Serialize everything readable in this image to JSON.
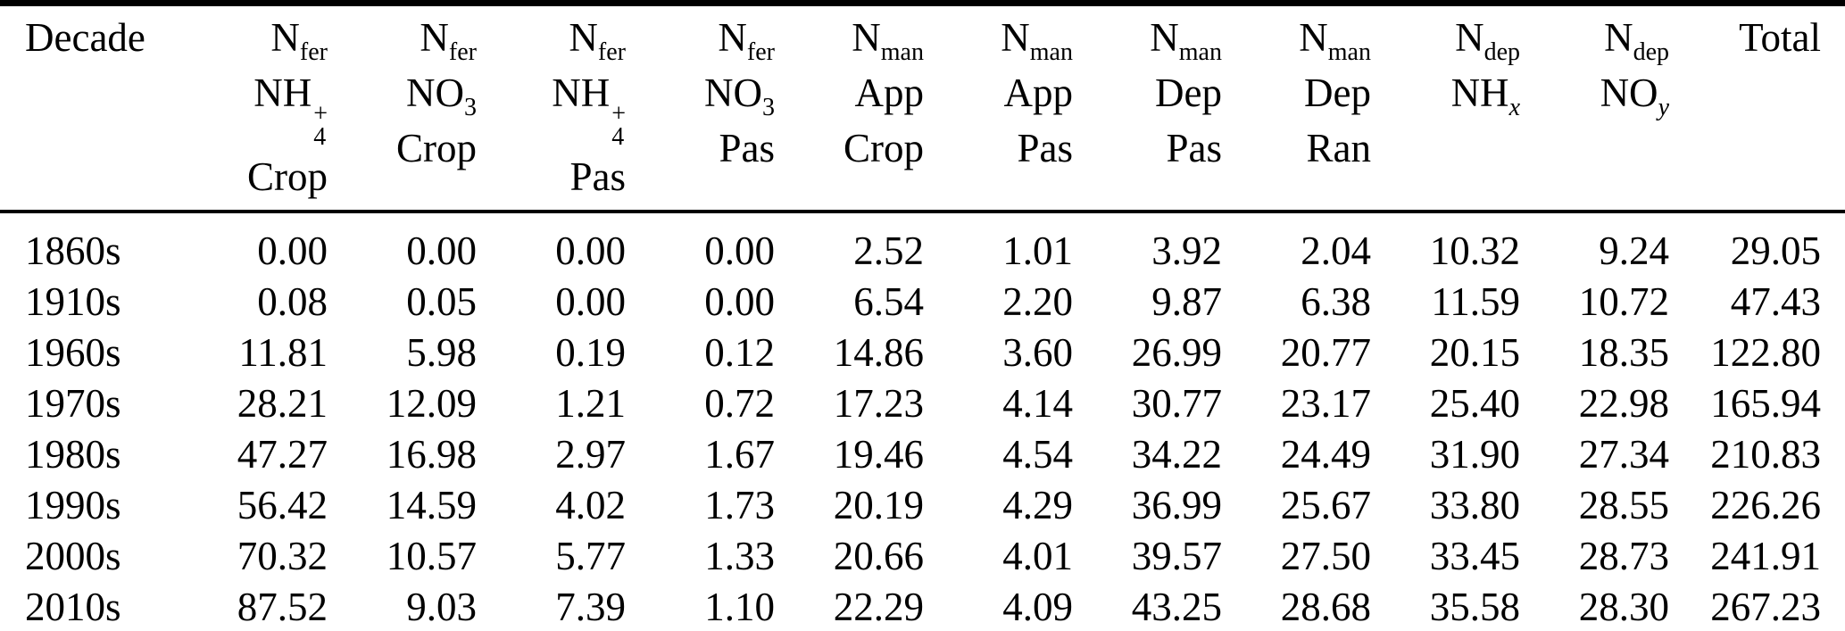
{
  "page": {
    "background_color": "#ffffff",
    "text_color": "#000000",
    "rule_color": "#000000"
  },
  "table": {
    "name": "nitrogen-inputs-by-decade",
    "columns": [
      {
        "id": "decade",
        "align": "left",
        "lines": [
          [
            {
              "t": "Decade"
            }
          ]
        ]
      },
      {
        "id": "nfer-nh4-crop",
        "align": "right",
        "lines": [
          [
            {
              "t": "N"
            },
            {
              "sub": "fer"
            }
          ],
          [
            {
              "t": "NH"
            },
            {
              "stack": {
                "sup": "+",
                "sub": "4"
              }
            }
          ],
          [
            {
              "t": "Crop"
            }
          ]
        ]
      },
      {
        "id": "nfer-no3-crop",
        "align": "right",
        "lines": [
          [
            {
              "t": "N"
            },
            {
              "sub": "fer"
            }
          ],
          [
            {
              "t": "NO"
            },
            {
              "sub": "3"
            }
          ],
          [
            {
              "t": "Crop"
            }
          ]
        ]
      },
      {
        "id": "nfer-nh4-pas",
        "align": "right",
        "lines": [
          [
            {
              "t": "N"
            },
            {
              "sub": "fer"
            }
          ],
          [
            {
              "t": "NH"
            },
            {
              "stack": {
                "sup": "+",
                "sub": "4"
              }
            }
          ],
          [
            {
              "t": "Pas"
            }
          ]
        ]
      },
      {
        "id": "nfer-no3-pas",
        "align": "right",
        "lines": [
          [
            {
              "t": "N"
            },
            {
              "sub": "fer"
            }
          ],
          [
            {
              "t": "NO"
            },
            {
              "sub": "3"
            }
          ],
          [
            {
              "t": "Pas"
            }
          ]
        ]
      },
      {
        "id": "nman-app-crop",
        "align": "right",
        "lines": [
          [
            {
              "t": "N"
            },
            {
              "sub": "man"
            }
          ],
          [
            {
              "t": "App"
            }
          ],
          [
            {
              "t": "Crop"
            }
          ]
        ]
      },
      {
        "id": "nman-app-pas",
        "align": "right",
        "lines": [
          [
            {
              "t": "N"
            },
            {
              "sub": "man"
            }
          ],
          [
            {
              "t": "App"
            }
          ],
          [
            {
              "t": "Pas"
            }
          ]
        ]
      },
      {
        "id": "nman-dep-pas",
        "align": "right",
        "lines": [
          [
            {
              "t": "N"
            },
            {
              "sub": "man"
            }
          ],
          [
            {
              "t": "Dep"
            }
          ],
          [
            {
              "t": "Pas"
            }
          ]
        ]
      },
      {
        "id": "nman-dep-ran",
        "align": "right",
        "lines": [
          [
            {
              "t": "N"
            },
            {
              "sub": "man"
            }
          ],
          [
            {
              "t": "Dep"
            }
          ],
          [
            {
              "t": "Ran"
            }
          ]
        ]
      },
      {
        "id": "ndep-nhx",
        "align": "right",
        "lines": [
          [
            {
              "t": "N"
            },
            {
              "sub": "dep"
            }
          ],
          [
            {
              "t": "NH"
            },
            {
              "sub": "x",
              "i": true
            }
          ]
        ]
      },
      {
        "id": "ndep-noy",
        "align": "right",
        "lines": [
          [
            {
              "t": "N"
            },
            {
              "sub": "dep"
            }
          ],
          [
            {
              "t": "NO"
            },
            {
              "sub": "y",
              "i": true
            }
          ]
        ]
      },
      {
        "id": "total",
        "align": "right",
        "lines": [
          [
            {
              "t": "Total"
            }
          ]
        ]
      }
    ],
    "rows": [
      {
        "decade": "1860s",
        "values": [
          "0.00",
          "0.00",
          "0.00",
          "0.00",
          "2.52",
          "1.01",
          "3.92",
          "2.04",
          "10.32",
          "9.24",
          "29.05"
        ]
      },
      {
        "decade": "1910s",
        "values": [
          "0.08",
          "0.05",
          "0.00",
          "0.00",
          "6.54",
          "2.20",
          "9.87",
          "6.38",
          "11.59",
          "10.72",
          "47.43"
        ]
      },
      {
        "decade": "1960s",
        "values": [
          "11.81",
          "5.98",
          "0.19",
          "0.12",
          "14.86",
          "3.60",
          "26.99",
          "20.77",
          "20.15",
          "18.35",
          "122.80"
        ]
      },
      {
        "decade": "1970s",
        "values": [
          "28.21",
          "12.09",
          "1.21",
          "0.72",
          "17.23",
          "4.14",
          "30.77",
          "23.17",
          "25.40",
          "22.98",
          "165.94"
        ]
      },
      {
        "decade": "1980s",
        "values": [
          "47.27",
          "16.98",
          "2.97",
          "1.67",
          "19.46",
          "4.54",
          "34.22",
          "24.49",
          "31.90",
          "27.34",
          "210.83"
        ]
      },
      {
        "decade": "1990s",
        "values": [
          "56.42",
          "14.59",
          "4.02",
          "1.73",
          "20.19",
          "4.29",
          "36.99",
          "25.67",
          "33.80",
          "28.55",
          "226.26"
        ]
      },
      {
        "decade": "2000s",
        "values": [
          "70.32",
          "10.57",
          "5.77",
          "1.33",
          "20.66",
          "4.01",
          "39.57",
          "27.50",
          "33.45",
          "28.73",
          "241.91"
        ]
      },
      {
        "decade": "2010s",
        "values": [
          "87.52",
          "9.03",
          "7.39",
          "1.10",
          "22.29",
          "4.09",
          "43.25",
          "28.68",
          "35.58",
          "28.30",
          "267.23"
        ]
      }
    ]
  },
  "chart_data": {
    "type": "table",
    "columns": [
      "Decade",
      "Nfer NH4+ Crop",
      "Nfer NO3 Crop",
      "Nfer NH4+ Pas",
      "Nfer NO3 Pas",
      "Nman App Crop",
      "Nman App Pas",
      "Nman Dep Pas",
      "Nman Dep Ran",
      "Ndep NHx",
      "Ndep NOy",
      "Total"
    ],
    "rows": [
      [
        "1860s",
        0.0,
        0.0,
        0.0,
        0.0,
        2.52,
        1.01,
        3.92,
        2.04,
        10.32,
        9.24,
        29.05
      ],
      [
        "1910s",
        0.08,
        0.05,
        0.0,
        0.0,
        6.54,
        2.2,
        9.87,
        6.38,
        11.59,
        10.72,
        47.43
      ],
      [
        "1960s",
        11.81,
        5.98,
        0.19,
        0.12,
        14.86,
        3.6,
        26.99,
        20.77,
        20.15,
        18.35,
        122.8
      ],
      [
        "1970s",
        28.21,
        12.09,
        1.21,
        0.72,
        17.23,
        4.14,
        30.77,
        23.17,
        25.4,
        22.98,
        165.94
      ],
      [
        "1980s",
        47.27,
        16.98,
        2.97,
        1.67,
        19.46,
        4.54,
        34.22,
        24.49,
        31.9,
        27.34,
        210.83
      ],
      [
        "1990s",
        56.42,
        14.59,
        4.02,
        1.73,
        20.19,
        4.29,
        36.99,
        25.67,
        33.8,
        28.55,
        226.26
      ],
      [
        "2000s",
        70.32,
        10.57,
        5.77,
        1.33,
        20.66,
        4.01,
        39.57,
        27.5,
        33.45,
        28.73,
        241.91
      ],
      [
        "2010s",
        87.52,
        9.03,
        7.39,
        1.1,
        22.29,
        4.09,
        43.25,
        28.68,
        35.58,
        28.3,
        267.23
      ]
    ]
  }
}
